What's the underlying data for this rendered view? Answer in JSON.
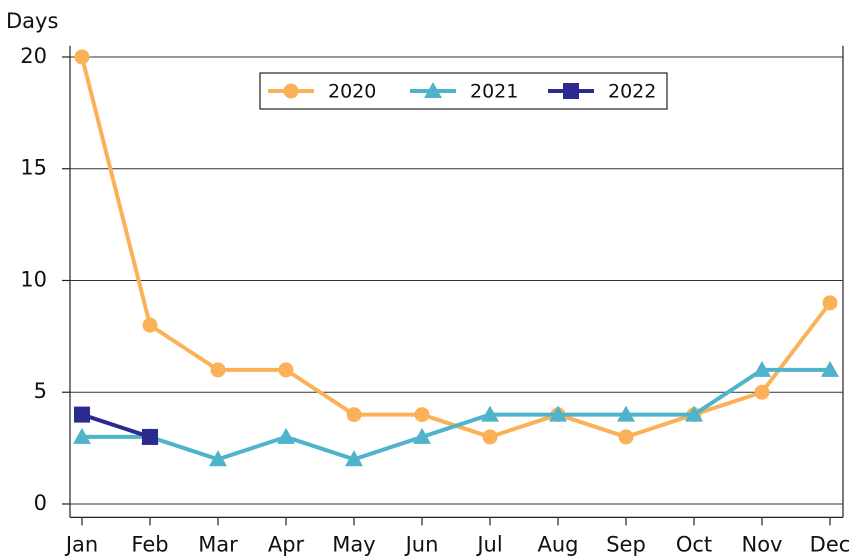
{
  "chart_data": {
    "type": "line",
    "y_label": "Days",
    "categories": [
      "Jan",
      "Feb",
      "Mar",
      "Apr",
      "May",
      "Jun",
      "Jul",
      "Aug",
      "Sep",
      "Oct",
      "Nov",
      "Dec"
    ],
    "series": [
      {
        "name": "2020",
        "color": "#fbb157",
        "marker": "circle",
        "values": [
          20,
          8,
          6,
          6,
          4,
          4,
          3,
          4,
          3,
          4,
          5,
          9
        ]
      },
      {
        "name": "2021",
        "color": "#4fb3cc",
        "marker": "triangle",
        "values": [
          3,
          3,
          2,
          3,
          2,
          3,
          4,
          4,
          4,
          4,
          6,
          6
        ]
      },
      {
        "name": "2022",
        "color": "#2b2a8f",
        "marker": "square",
        "values": [
          4,
          3,
          null,
          null,
          null,
          null,
          null,
          null,
          null,
          null,
          null,
          null
        ]
      }
    ],
    "ylim": [
      -0.6,
      20.5
    ],
    "yticks": [
      0,
      5,
      10,
      15,
      20
    ],
    "grid": true
  }
}
